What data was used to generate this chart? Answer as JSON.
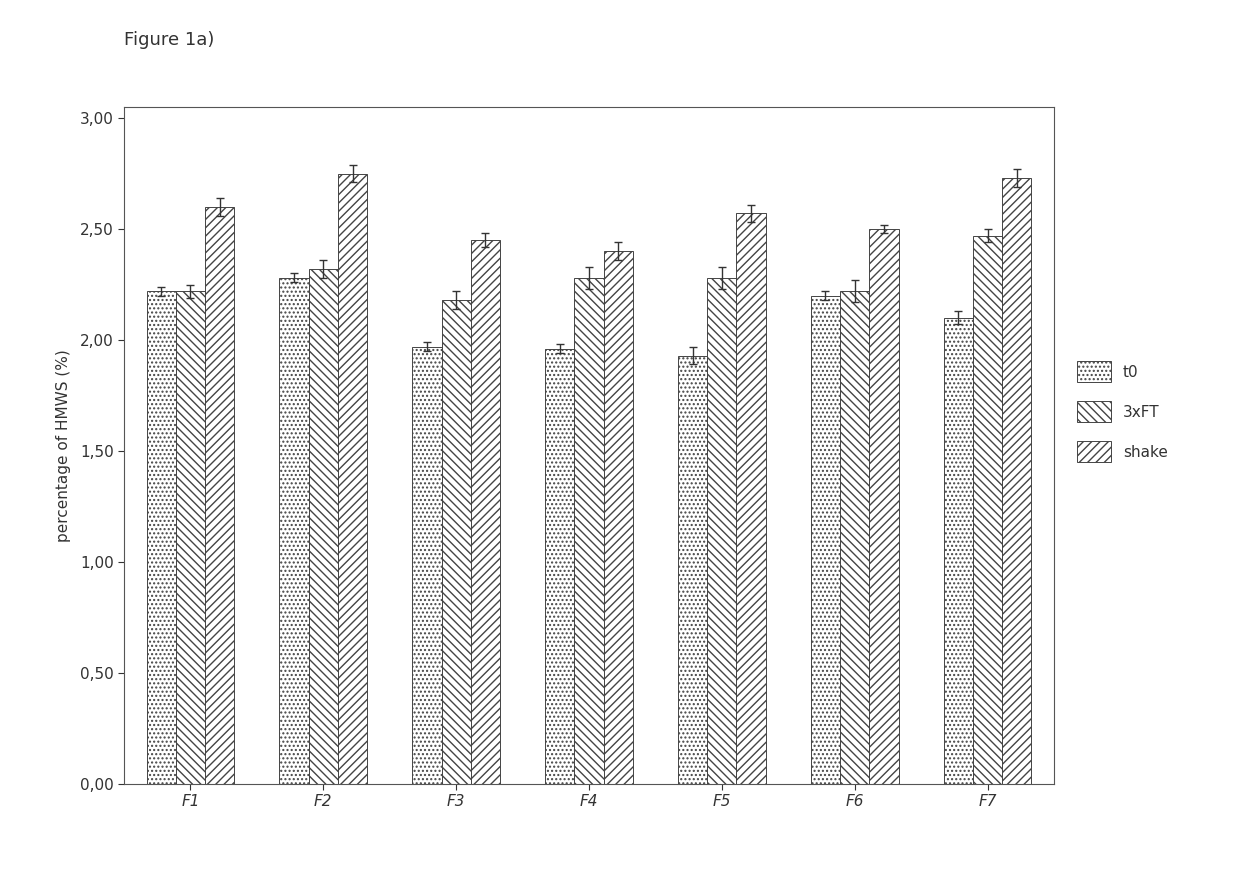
{
  "title": "Figure 1a)",
  "ylabel": "percentage of HMWS (%)",
  "categories": [
    "F1",
    "F2",
    "F3",
    "F4",
    "F5",
    "F6",
    "F7"
  ],
  "series": {
    "t0": [
      2.22,
      2.28,
      1.97,
      1.96,
      1.93,
      2.2,
      2.1
    ],
    "3xFT": [
      2.22,
      2.32,
      2.18,
      2.28,
      2.28,
      2.22,
      2.47
    ],
    "shake": [
      2.6,
      2.75,
      2.45,
      2.4,
      2.57,
      2.5,
      2.73
    ]
  },
  "errors": {
    "t0": [
      0.02,
      0.02,
      0.02,
      0.02,
      0.04,
      0.02,
      0.03
    ],
    "3xFT": [
      0.03,
      0.04,
      0.04,
      0.05,
      0.05,
      0.05,
      0.03
    ],
    "shake": [
      0.04,
      0.04,
      0.03,
      0.04,
      0.04,
      0.02,
      0.04
    ]
  },
  "ylim": [
    0,
    3.05
  ],
  "yticks": [
    0.0,
    0.5,
    1.0,
    1.5,
    2.0,
    2.5,
    3.0
  ],
  "ytick_labels": [
    "0,00",
    "0,50",
    "1,00",
    "1,50",
    "2,00",
    "2,50",
    "3,00"
  ],
  "legend_labels": [
    "t0",
    "3xFT",
    "shake"
  ],
  "background_color": "#ffffff",
  "bar_edge_color": "#333333",
  "bar_width": 0.22,
  "title_fontsize": 13,
  "axis_label_fontsize": 11,
  "tick_fontsize": 11,
  "legend_fontsize": 11
}
